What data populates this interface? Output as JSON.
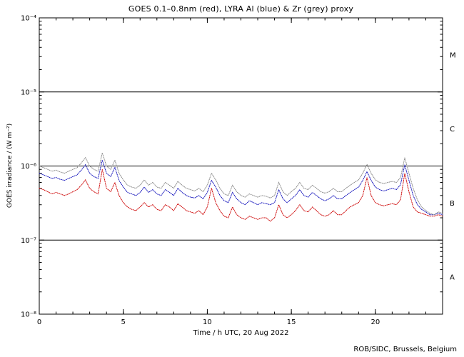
{
  "page": {
    "title": "GOES 0.1–0.8nm (red), LYRA Al (blue) & Zr (grey) proxy",
    "xlabel": "Time / h UTC, 20 Aug 2022",
    "ylabel": "GOES irradiance / (W m⁻²)",
    "footer": "ROB/SIDC, Brussels, Belgium"
  },
  "chart_data": {
    "type": "line",
    "title": "GOES 0.1–0.8nm (red), LYRA Al (blue) & Zr (grey) proxy",
    "xlabel": "Time / h UTC, 20 Aug 2022",
    "ylabel": "GOES irradiance / (W m⁻²)",
    "x_range": [
      0,
      24
    ],
    "y_log_range": [
      -8,
      -4
    ],
    "x_major_ticks": [
      0,
      5,
      10,
      15,
      20
    ],
    "x_minor_step": 1,
    "y_tick_values": [
      0.0001,
      1e-05,
      1e-06,
      1e-07,
      1e-08
    ],
    "y_tick_labels": [
      "10⁻⁴",
      "10⁻⁵",
      "10⁻⁶",
      "10⁻⁷",
      "10⁻⁸"
    ],
    "hlines": [
      1e-05,
      1e-06,
      1e-07
    ],
    "flare_classes": [
      {
        "label": "M",
        "log_mid": -4.5
      },
      {
        "label": "C",
        "log_mid": -5.5
      },
      {
        "label": "B",
        "log_mid": -6.5
      },
      {
        "label": "A",
        "log_mid": -7.5
      }
    ],
    "grid": false,
    "legend": "encoded in title colors",
    "units": "W m^-2",
    "unit_scale": 1e-07,
    "x_step_h": 0.25,
    "series": [
      {
        "name": "GOES 0.1-0.8nm",
        "color": "#cc0000",
        "values_e7": [
          5,
          4.8,
          4.5,
          4.2,
          4.4,
          4.2,
          4,
          4.2,
          4.5,
          4.8,
          5.5,
          6.5,
          5,
          4.5,
          4.2,
          9,
          5,
          4.5,
          6,
          4,
          3.2,
          2.8,
          2.6,
          2.5,
          2.8,
          3.2,
          2.8,
          3,
          2.6,
          2.5,
          3,
          2.8,
          2.5,
          3.1,
          2.8,
          2.5,
          2.4,
          2.3,
          2.5,
          2.2,
          2.8,
          5,
          3.2,
          2.5,
          2.1,
          2,
          2.8,
          2.2,
          2,
          1.9,
          2.1,
          2,
          1.9,
          2,
          2,
          1.8,
          2,
          3,
          2.2,
          2,
          2.2,
          2.5,
          3,
          2.5,
          2.4,
          2.8,
          2.5,
          2.2,
          2.1,
          2.2,
          2.5,
          2.2,
          2.2,
          2.5,
          2.8,
          3,
          3.2,
          4,
          7,
          4,
          3.2,
          3,
          2.9,
          3,
          3.1,
          3,
          3.5,
          8,
          4.5,
          2.8,
          2.4,
          2.3,
          2.2,
          2.1,
          2.1,
          2.2,
          2.1
        ]
      },
      {
        "name": "LYRA Al proxy",
        "color": "#1111bb",
        "values_e7": [
          8,
          7.6,
          7.2,
          6.8,
          7,
          6.6,
          6.4,
          6.8,
          7.2,
          7.6,
          8.8,
          10.4,
          8,
          7.2,
          6.8,
          12,
          8,
          7.2,
          9.6,
          6.4,
          5.2,
          4.4,
          4.2,
          4,
          4.4,
          5.2,
          4.4,
          4.8,
          4.2,
          4,
          4.8,
          4.4,
          4,
          5,
          4.4,
          4,
          3.8,
          3.7,
          4,
          3.6,
          4.4,
          6.4,
          5.2,
          4,
          3.4,
          3.2,
          4.4,
          3.6,
          3.2,
          3,
          3.4,
          3.2,
          3,
          3.2,
          3.1,
          3,
          3.2,
          4.8,
          3.6,
          3.2,
          3.6,
          4,
          4.8,
          4,
          3.8,
          4.4,
          4,
          3.6,
          3.4,
          3.6,
          4,
          3.6,
          3.6,
          4,
          4.4,
          4.8,
          5.2,
          6.4,
          8.4,
          6.4,
          5.2,
          4.8,
          4.6,
          4.8,
          5,
          4.8,
          5.6,
          10.4,
          6.4,
          4,
          3,
          2.6,
          2.4,
          2.2,
          2.2,
          2.3,
          2.2
        ]
      },
      {
        "name": "LYRA Zr proxy",
        "color": "#8a8a8a",
        "values_e7": [
          10,
          9.5,
          9,
          8.5,
          8.8,
          8.3,
          8,
          8.5,
          9,
          9.5,
          11,
          13,
          10,
          9,
          8.5,
          15,
          10,
          9,
          12,
          8,
          6.5,
          5.5,
          5.2,
          5,
          5.5,
          6.5,
          5.5,
          6,
          5.2,
          5,
          6,
          5.5,
          5,
          6.2,
          5.5,
          5,
          4.8,
          4.6,
          5,
          4.5,
          5.5,
          8,
          6.5,
          5,
          4.2,
          4,
          5.5,
          4.5,
          4,
          3.8,
          4.2,
          4,
          3.8,
          4,
          3.9,
          3.7,
          4,
          6,
          4.5,
          4,
          4.5,
          5,
          6,
          5,
          4.8,
          5.5,
          5,
          4.5,
          4.3,
          4.5,
          5,
          4.5,
          4.5,
          5,
          5.5,
          6,
          6.5,
          8,
          10.5,
          8,
          6.5,
          6,
          5.8,
          6,
          6.2,
          6,
          7,
          13,
          8,
          5,
          3.5,
          2.8,
          2.5,
          2.3,
          2.2,
          2.4,
          2.3
        ]
      }
    ]
  }
}
